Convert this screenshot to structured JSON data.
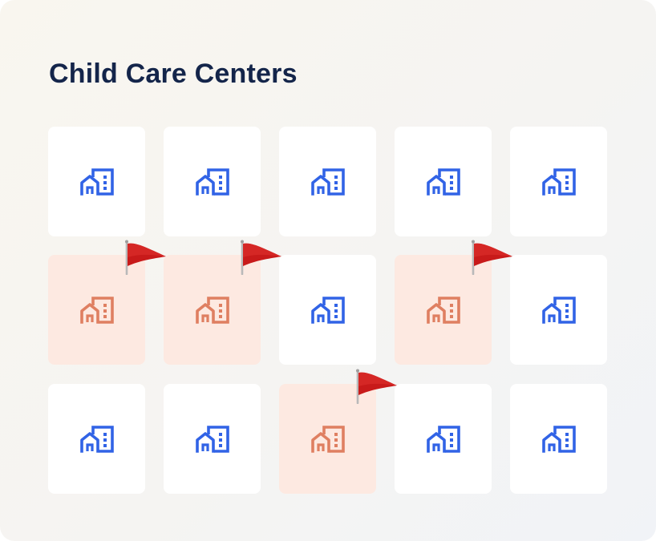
{
  "page": {
    "title": "Child Care Centers"
  },
  "colors": {
    "normal_icon": "#3163e6",
    "flagged_icon": "#df7f61",
    "flagged_tile": "#fde9e1",
    "flag": "#c81a1a",
    "title": "#14254a"
  },
  "grid": {
    "rows": [
      [
        {
          "flagged": false,
          "icon": "building-icon"
        },
        {
          "flagged": false,
          "icon": "building-icon"
        },
        {
          "flagged": false,
          "icon": "building-icon"
        },
        {
          "flagged": false,
          "icon": "building-icon"
        },
        {
          "flagged": false,
          "icon": "building-icon"
        }
      ],
      [
        {
          "flagged": true,
          "icon": "building-icon",
          "marker": "red-flag-icon"
        },
        {
          "flagged": true,
          "icon": "building-icon",
          "marker": "red-flag-icon"
        },
        {
          "flagged": false,
          "icon": "building-icon"
        },
        {
          "flagged": true,
          "icon": "building-icon",
          "marker": "red-flag-icon"
        },
        {
          "flagged": false,
          "icon": "building-icon"
        }
      ],
      [
        {
          "flagged": false,
          "icon": "building-icon"
        },
        {
          "flagged": false,
          "icon": "building-icon"
        },
        {
          "flagged": true,
          "icon": "building-icon",
          "marker": "red-flag-icon"
        },
        {
          "flagged": false,
          "icon": "building-icon"
        },
        {
          "flagged": false,
          "icon": "building-icon"
        }
      ]
    ]
  }
}
